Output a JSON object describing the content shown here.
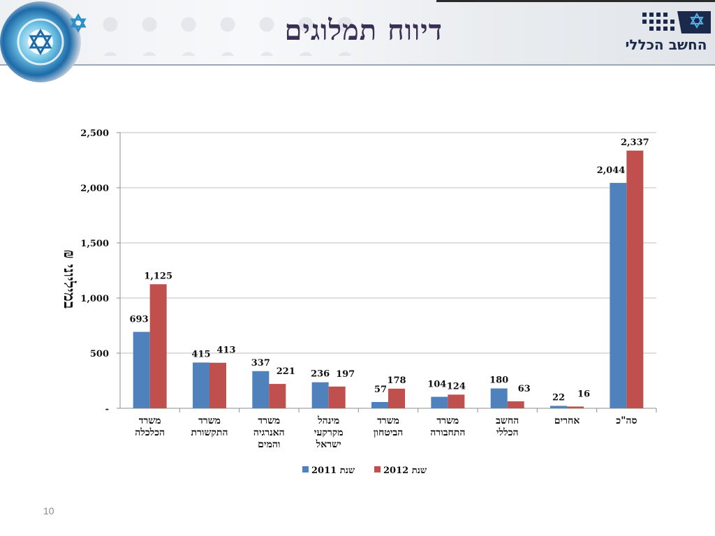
{
  "slide": {
    "title": "דיווח תמלוגים",
    "logo_text": "החשב הכללי",
    "page_number": "10"
  },
  "colors": {
    "series_2011": "#4f81bd",
    "series_2012": "#c0504d",
    "grid": "#bfbfbf",
    "axis": "#8c8c8c"
  },
  "chart_data": {
    "type": "bar",
    "title": "",
    "ylabel": "במיליוני ₪",
    "xlabel": "",
    "ylim": [
      0,
      2500
    ],
    "yticks": [
      "-",
      "500",
      "1,000",
      "1,500",
      "2,000",
      "2,500"
    ],
    "grid": true,
    "legend": "bottom",
    "categories": [
      [
        "משרד",
        "הכלכלה"
      ],
      [
        "משרד",
        "התקשורת"
      ],
      [
        "משרד",
        "האנרגיה",
        "והמים"
      ],
      [
        "מינהל",
        "מקרקעי",
        "ישראל"
      ],
      [
        "משרד",
        "הביטחון"
      ],
      [
        "משרד",
        "התחבורה"
      ],
      [
        "החשב",
        "הכללי"
      ],
      [
        "אחרים"
      ],
      [
        "סה\"כ"
      ]
    ],
    "series": [
      {
        "name": "שנת 2011",
        "values": [
          693,
          415,
          337,
          236,
          57,
          104,
          180,
          22,
          2044
        ],
        "labels": [
          "693",
          "415",
          "337",
          "236",
          "57",
          "104",
          "180",
          "22",
          "2,044"
        ]
      },
      {
        "name": "שנת 2012",
        "values": [
          1125,
          413,
          221,
          197,
          178,
          124,
          63,
          16,
          2337
        ],
        "labels": [
          "1,125",
          "413",
          "221",
          "197",
          "178",
          "124",
          "63",
          "16",
          "2,337"
        ]
      }
    ]
  }
}
